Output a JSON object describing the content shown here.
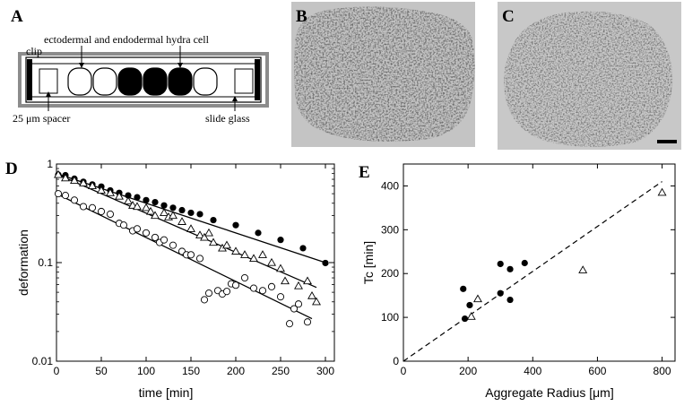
{
  "panels": {
    "a": {
      "letter": "A",
      "clip_label": "clip",
      "cell_label": "ectodermal  and  endodermal hydra cell",
      "spacer_label": "25 μm spacer",
      "glass_label": "slide glass"
    },
    "b": {
      "letter": "B"
    },
    "c": {
      "letter": "C"
    },
    "d": {
      "letter": "D"
    },
    "e": {
      "letter": "E"
    }
  },
  "colors": {
    "micrograph_bg": "#b9b9b9",
    "micrograph_dark": "#2a2a2a",
    "filled": "#000000",
    "line": "#000000"
  },
  "chart_data": [
    {
      "type": "scatter",
      "panel": "D",
      "xlabel": "time [min]",
      "ylabel": "deformation",
      "yscale": "log",
      "xlim": [
        0,
        310
      ],
      "ylim": [
        0.01,
        1
      ],
      "x_ticks": [
        0,
        50,
        100,
        150,
        200,
        250,
        300
      ],
      "y_ticks": [
        {
          "value": 1,
          "label": "1"
        },
        {
          "value": 0.1,
          "label": "0.1"
        },
        {
          "value": 0.01,
          "label": "0.01"
        }
      ],
      "series": [
        {
          "marker": "filled-circle",
          "points": [
            [
              2,
              0.78
            ],
            [
              10,
              0.77
            ],
            [
              20,
              0.71
            ],
            [
              30,
              0.66
            ],
            [
              40,
              0.62
            ],
            [
              50,
              0.59
            ],
            [
              60,
              0.54
            ],
            [
              70,
              0.51
            ],
            [
              80,
              0.48
            ],
            [
              90,
              0.46
            ],
            [
              100,
              0.43
            ],
            [
              110,
              0.41
            ],
            [
              120,
              0.38
            ],
            [
              130,
              0.36
            ],
            [
              140,
              0.34
            ],
            [
              150,
              0.32
            ],
            [
              160,
              0.31
            ],
            [
              175,
              0.27
            ],
            [
              200,
              0.24
            ],
            [
              225,
              0.2
            ],
            [
              250,
              0.17
            ],
            [
              275,
              0.14
            ],
            [
              300,
              0.099
            ]
          ],
          "fit": {
            "x": [
              0,
              300
            ],
            "y": [
              0.8,
              0.1
            ]
          }
        },
        {
          "marker": "open-triangle",
          "points": [
            [
              2,
              0.78
            ],
            [
              10,
              0.72
            ],
            [
              20,
              0.68
            ],
            [
              30,
              0.64
            ],
            [
              40,
              0.6
            ],
            [
              50,
              0.54
            ],
            [
              60,
              0.51
            ],
            [
              70,
              0.47
            ],
            [
              80,
              0.42
            ],
            [
              85,
              0.38
            ],
            [
              90,
              0.37
            ],
            [
              100,
              0.36
            ],
            [
              105,
              0.33
            ],
            [
              110,
              0.3
            ],
            [
              120,
              0.32
            ],
            [
              125,
              0.29
            ],
            [
              130,
              0.3
            ],
            [
              140,
              0.26
            ],
            [
              150,
              0.22
            ],
            [
              160,
              0.19
            ],
            [
              165,
              0.18
            ],
            [
              170,
              0.2
            ],
            [
              175,
              0.16
            ],
            [
              185,
              0.14
            ],
            [
              190,
              0.15
            ],
            [
              200,
              0.13
            ],
            [
              210,
              0.12
            ],
            [
              220,
              0.11
            ],
            [
              230,
              0.12
            ],
            [
              240,
              0.1
            ],
            [
              250,
              0.087
            ],
            [
              255,
              0.065
            ],
            [
              270,
              0.058
            ],
            [
              280,
              0.065
            ],
            [
              285,
              0.046
            ],
            [
              290,
              0.04
            ]
          ],
          "fit": {
            "x": [
              0,
              290
            ],
            "y": [
              0.79,
              0.056
            ]
          }
        },
        {
          "marker": "open-circle",
          "points": [
            [
              2,
              0.5
            ],
            [
              10,
              0.48
            ],
            [
              20,
              0.43
            ],
            [
              30,
              0.37
            ],
            [
              40,
              0.36
            ],
            [
              50,
              0.33
            ],
            [
              60,
              0.31
            ],
            [
              70,
              0.25
            ],
            [
              75,
              0.24
            ],
            [
              85,
              0.21
            ],
            [
              90,
              0.22
            ],
            [
              100,
              0.2
            ],
            [
              110,
              0.18
            ],
            [
              115,
              0.16
            ],
            [
              120,
              0.17
            ],
            [
              130,
              0.15
            ],
            [
              140,
              0.13
            ],
            [
              145,
              0.12
            ],
            [
              150,
              0.12
            ],
            [
              160,
              0.11
            ],
            [
              165,
              0.042
            ],
            [
              170,
              0.049
            ],
            [
              180,
              0.052
            ],
            [
              185,
              0.048
            ],
            [
              190,
              0.051
            ],
            [
              195,
              0.061
            ],
            [
              200,
              0.059
            ],
            [
              210,
              0.07
            ],
            [
              220,
              0.055
            ],
            [
              230,
              0.052
            ],
            [
              240,
              0.057
            ],
            [
              250,
              0.045
            ],
            [
              260,
              0.024
            ],
            [
              265,
              0.034
            ],
            [
              270,
              0.038
            ],
            [
              280,
              0.025
            ]
          ],
          "fit": {
            "x": [
              0,
              285
            ],
            "y": [
              0.5,
              0.027
            ]
          }
        }
      ]
    },
    {
      "type": "scatter",
      "panel": "E",
      "xlabel": "Aggregate Radius [μm]",
      "ylabel": "Tc [min]",
      "xlim": [
        0,
        840
      ],
      "ylim": [
        0,
        450
      ],
      "x_ticks": [
        0,
        200,
        400,
        600,
        800
      ],
      "y_ticks": [
        0,
        100,
        200,
        300,
        400
      ],
      "series": [
        {
          "marker": "filled-circle",
          "points": [
            [
              185,
              165
            ],
            [
              190,
              97
            ],
            [
              205,
              128
            ],
            [
              300,
              222
            ],
            [
              300,
              155
            ],
            [
              330,
              210
            ],
            [
              330,
              140
            ],
            [
              375,
              224
            ]
          ]
        },
        {
          "marker": "open-triangle",
          "points": [
            [
              210,
              102
            ],
            [
              230,
              142
            ],
            [
              555,
              208
            ],
            [
              800,
              385
            ]
          ]
        }
      ],
      "fit": {
        "style": "dashed",
        "x": [
          0,
          800
        ],
        "y": [
          0,
          410
        ]
      }
    }
  ]
}
